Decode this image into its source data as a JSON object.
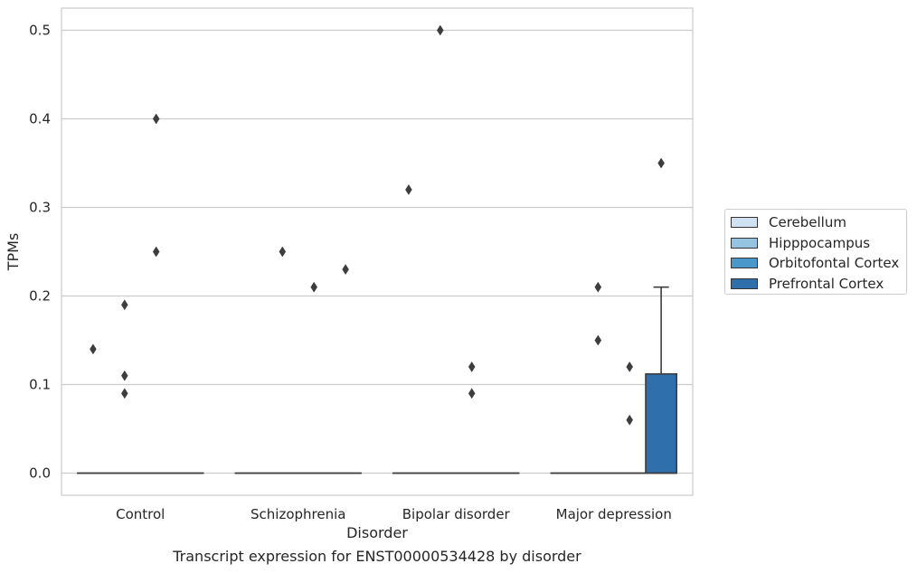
{
  "caption": "Transcript expression for ENST00000534428 by disorder",
  "chart_data": {
    "type": "box",
    "xlabel": "Disorder",
    "ylabel": "TPMs",
    "ylim": [
      -0.025,
      0.525
    ],
    "yticks": [
      0.0,
      0.1,
      0.2,
      0.3,
      0.4,
      0.5
    ],
    "ytick_labels": [
      "0.0",
      "0.1",
      "0.2",
      "0.3",
      "0.4",
      "0.5"
    ],
    "grid": "horizontal",
    "legend_position": "right",
    "categories": [
      "Control",
      "Schizophrenia",
      "Bipolar disorder",
      "Major depression"
    ],
    "series": [
      {
        "name": "Cerebellum",
        "color": "#d0e1f2",
        "boxes": [
          {
            "q1": 0,
            "median": 0,
            "q3": 0,
            "whisker_low": 0,
            "whisker_high": 0,
            "outliers": [
              0.14
            ]
          },
          {
            "q1": 0,
            "median": 0,
            "q3": 0,
            "whisker_low": 0,
            "whisker_high": 0,
            "outliers": []
          },
          {
            "q1": 0,
            "median": 0,
            "q3": 0,
            "whisker_low": 0,
            "whisker_high": 0,
            "outliers": [
              0.32
            ]
          },
          {
            "q1": 0,
            "median": 0,
            "q3": 0,
            "whisker_low": 0,
            "whisker_high": 0,
            "outliers": []
          }
        ]
      },
      {
        "name": "Hipppocampus",
        "color": "#94c4df",
        "boxes": [
          {
            "q1": 0,
            "median": 0,
            "q3": 0,
            "whisker_low": 0,
            "whisker_high": 0,
            "outliers": [
              0.19,
              0.11,
              0.09
            ]
          },
          {
            "q1": 0,
            "median": 0,
            "q3": 0,
            "whisker_low": 0,
            "whisker_high": 0,
            "outliers": [
              0.25
            ]
          },
          {
            "q1": 0,
            "median": 0,
            "q3": 0,
            "whisker_low": 0,
            "whisker_high": 0,
            "outliers": [
              0.5
            ]
          },
          {
            "q1": 0,
            "median": 0,
            "q3": 0,
            "whisker_low": 0,
            "whisker_high": 0,
            "outliers": [
              0.21,
              0.15
            ]
          }
        ]
      },
      {
        "name": "Orbitofontal Cortex",
        "color": "#4a98c9",
        "boxes": [
          {
            "q1": 0,
            "median": 0,
            "q3": 0,
            "whisker_low": 0,
            "whisker_high": 0,
            "outliers": [
              0.4,
              0.25
            ]
          },
          {
            "q1": 0,
            "median": 0,
            "q3": 0,
            "whisker_low": 0,
            "whisker_high": 0,
            "outliers": [
              0.21
            ]
          },
          {
            "q1": 0,
            "median": 0,
            "q3": 0,
            "whisker_low": 0,
            "whisker_high": 0,
            "outliers": [
              0.12,
              0.09
            ]
          },
          {
            "q1": 0,
            "median": 0,
            "q3": 0,
            "whisker_low": 0,
            "whisker_high": 0,
            "outliers": [
              0.12,
              0.06
            ]
          }
        ]
      },
      {
        "name": "Prefrontal Cortex",
        "color": "#2e6fac",
        "boxes": [
          {
            "q1": 0,
            "median": 0,
            "q3": 0,
            "whisker_low": 0,
            "whisker_high": 0,
            "outliers": []
          },
          {
            "q1": 0,
            "median": 0,
            "q3": 0,
            "whisker_low": 0,
            "whisker_high": 0,
            "outliers": [
              0.23
            ]
          },
          {
            "q1": 0,
            "median": 0,
            "q3": 0,
            "whisker_low": 0,
            "whisker_high": 0,
            "outliers": []
          },
          {
            "q1": 0,
            "median": 0,
            "q3": 0.112,
            "whisker_low": 0,
            "whisker_high": 0.21,
            "outliers": [
              0.35
            ]
          }
        ]
      }
    ]
  }
}
